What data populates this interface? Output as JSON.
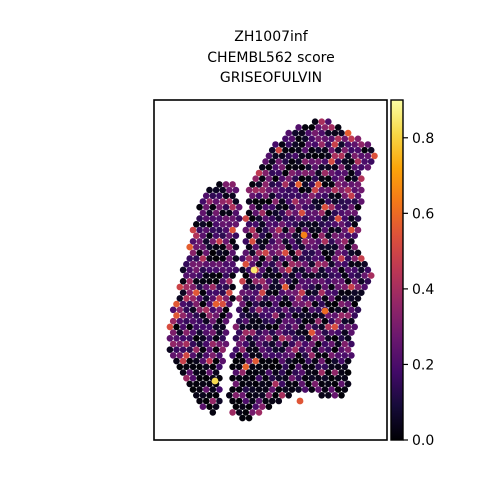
{
  "chart_data": {
    "type": "scatter",
    "title_lines": [
      "ZH1007inf",
      "CHEMBL562 score",
      "GRISEOFULVIN"
    ],
    "xlabel": "",
    "ylabel": "",
    "colormap": "inferno",
    "colorbar": {
      "min": 0.0,
      "max": 0.9,
      "ticks": [
        0.0,
        0.2,
        0.4,
        0.6,
        0.8
      ],
      "tick_labels": [
        "0.0",
        "0.2",
        "0.4",
        "0.6",
        "0.8"
      ]
    },
    "grid": false,
    "legend": "none",
    "notable_values": [
      {
        "score": 0.85
      },
      {
        "score": 0.82
      },
      {
        "score": 0.65
      },
      {
        "score": 0.6
      },
      {
        "score": 0.55
      }
    ]
  }
}
